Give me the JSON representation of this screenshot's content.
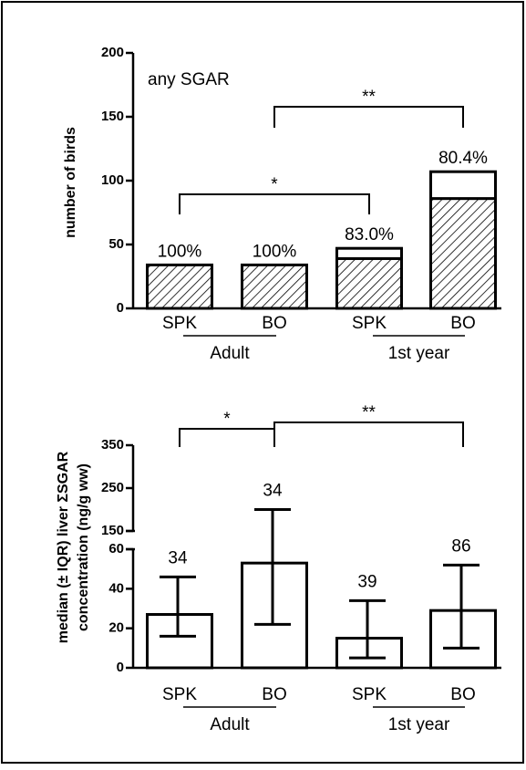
{
  "chart_data": [
    {
      "type": "stacked_bar",
      "label": "any SGAR",
      "y_label": "number of birds",
      "categories": [
        "SPK",
        "BO",
        "SPK",
        "BO"
      ],
      "groups": [
        "Adult",
        "1st year"
      ],
      "series": [
        {
          "color": "#000000",
          "hatch": true,
          "values": [
            34,
            34,
            39,
            86
          ]
        },
        {
          "color": "#ffffff",
          "hatch": false,
          "values": [
            0,
            0,
            8,
            21
          ]
        }
      ],
      "percent_labels": [
        "100%",
        "100%",
        "83.0%",
        "80.4%"
      ],
      "annotations": [
        "*",
        "**"
      ],
      "ylim": [
        0,
        200
      ],
      "yticks": [
        0,
        50,
        100,
        150,
        200
      ]
    },
    {
      "type": "bar",
      "y_label": [
        "median (± IQR) liver ΣSGAR",
        "concentration (ng/g ww)"
      ],
      "categories": [
        "SPK",
        "BO",
        "SPK",
        "BO"
      ],
      "groups": [
        "Adult",
        "1st year"
      ],
      "values": [
        27,
        53,
        15,
        29
      ],
      "lower": [
        16,
        22,
        5,
        10
      ],
      "upper": [
        46,
        200,
        34,
        52
      ],
      "n_labels": [
        34,
        34,
        39,
        86
      ],
      "color": "#ffffff",
      "annotations": [
        "*",
        "**"
      ],
      "ylim": [
        0,
        350
      ],
      "ybreak": [
        60,
        150
      ],
      "yticks": [
        0,
        20,
        40,
        60,
        150,
        250,
        350
      ]
    }
  ]
}
